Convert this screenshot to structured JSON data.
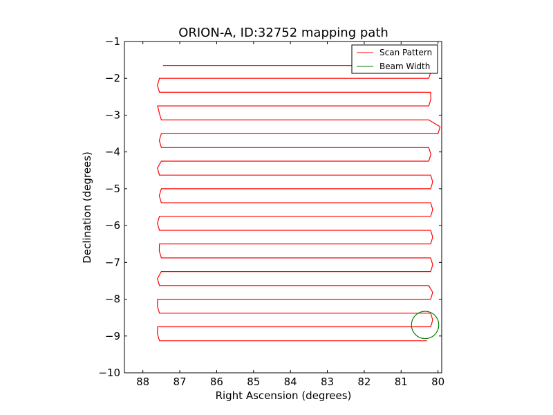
{
  "chart_data": {
    "type": "line",
    "title": "ORION-A, ID:32752 mapping path",
    "xlabel": "Right Ascension (degrees)",
    "ylabel": "Declination (degrees)",
    "xlim": [
      88.5,
      79.9
    ],
    "ylim": [
      -10,
      -1
    ],
    "x_ticks": [
      "88",
      "87",
      "86",
      "85",
      "84",
      "83",
      "82",
      "81",
      "80"
    ],
    "y_ticks": [
      "−1",
      "−2",
      "−3",
      "−4",
      "−5",
      "−6",
      "−7",
      "−8",
      "−9",
      "−10"
    ],
    "grid": false,
    "legend_position": "top-right",
    "colors": {
      "scan": "#ff0000",
      "beam": "#008000"
    },
    "series": [
      {
        "name": "Scan Pattern",
        "kind": "raster",
        "scan_rows": [
          {
            "dec": -1.65,
            "ra_start": 87.45,
            "ra_end": 80.35
          },
          {
            "dec": -2.0,
            "ra_start": 80.25,
            "ra_end": 87.55
          },
          {
            "dec": -2.38,
            "ra_start": 87.55,
            "ra_end": 80.2
          },
          {
            "dec": -2.75,
            "ra_start": 80.25,
            "ra_end": 87.6
          },
          {
            "dec": -3.13,
            "ra_start": 87.5,
            "ra_end": 80.25
          },
          {
            "dec": -3.5,
            "ra_start": 80.0,
            "ra_end": 87.5
          },
          {
            "dec": -3.88,
            "ra_start": 87.5,
            "ra_end": 80.25
          },
          {
            "dec": -4.25,
            "ra_start": 80.25,
            "ra_end": 87.5
          },
          {
            "dec": -4.63,
            "ra_start": 87.55,
            "ra_end": 80.2
          },
          {
            "dec": -5.0,
            "ra_start": 80.2,
            "ra_end": 87.5
          },
          {
            "dec": -5.38,
            "ra_start": 87.5,
            "ra_end": 80.2
          },
          {
            "dec": -5.75,
            "ra_start": 80.2,
            "ra_end": 87.55
          },
          {
            "dec": -6.13,
            "ra_start": 87.55,
            "ra_end": 80.2
          },
          {
            "dec": -6.5,
            "ra_start": 80.2,
            "ra_end": 87.55
          },
          {
            "dec": -6.88,
            "ra_start": 87.5,
            "ra_end": 80.2
          },
          {
            "dec": -7.25,
            "ra_start": 80.2,
            "ra_end": 87.5
          },
          {
            "dec": -7.63,
            "ra_start": 87.55,
            "ra_end": 80.25
          },
          {
            "dec": -8.0,
            "ra_start": 80.2,
            "ra_end": 87.6
          },
          {
            "dec": -8.38,
            "ra_start": 87.55,
            "ra_end": 80.2
          },
          {
            "dec": -8.75,
            "ra_start": 80.2,
            "ra_end": 87.6
          },
          {
            "dec": -9.13,
            "ra_start": 87.55,
            "ra_end": 80.3
          }
        ]
      },
      {
        "name": "Beam Width",
        "kind": "circle",
        "center": {
          "ra": 80.35,
          "dec": -8.7
        },
        "radius_deg": 0.37
      }
    ]
  }
}
